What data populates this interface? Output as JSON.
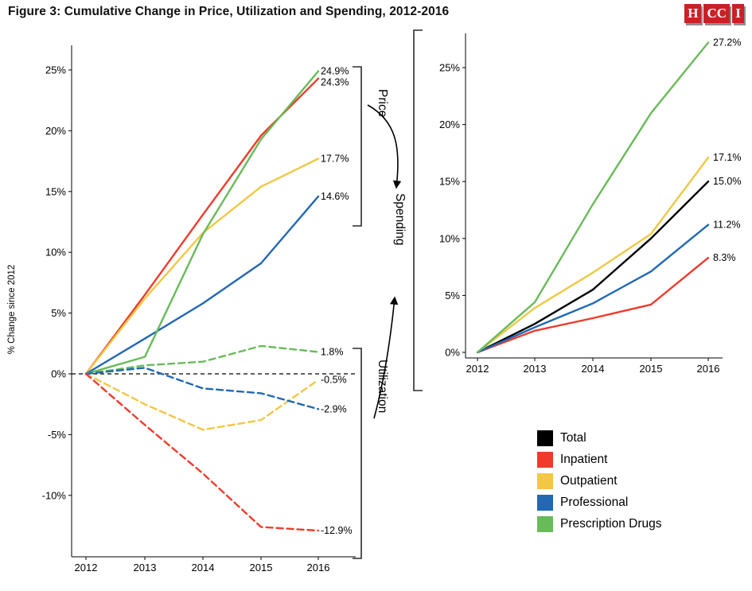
{
  "header": {
    "title": "Figure 3: Cumulative Change in Price, Utilization and Spending, 2012-2016",
    "logo": {
      "blocks": [
        "H",
        "CC",
        "I"
      ],
      "color": "#cb2026"
    }
  },
  "annotations": {
    "price": "Price",
    "utilization": "Utilization",
    "spending": "Spending"
  },
  "legend": {
    "items": [
      {
        "label": "Total",
        "color": "#000000"
      },
      {
        "label": "Inpatient",
        "color": "#ee3b2c"
      },
      {
        "label": "Outpatient",
        "color": "#f2c744"
      },
      {
        "label": "Professional",
        "color": "#2268b3"
      },
      {
        "label": "Prescription Drugs",
        "color": "#68bb59"
      }
    ]
  },
  "chart_data": [
    {
      "type": "line",
      "title": "Price and Utilization",
      "x": [
        "2012",
        "2013",
        "2014",
        "2015",
        "2016"
      ],
      "ylabel": "% Change since 2012",
      "yticks": [
        "25%",
        "20%",
        "15%",
        "10%",
        "5%",
        "0%",
        "-5%",
        "-10%"
      ],
      "ylim": [
        -15,
        27
      ],
      "zero_line": true,
      "grid": false,
      "series": [
        {
          "name": "Inpatient Price",
          "group": "Price",
          "color": "#ee3b2c",
          "style": "solid",
          "values": [
            0,
            6.5,
            13.1,
            19.6,
            24.3
          ],
          "end_label": "24.3%"
        },
        {
          "name": "Outpatient Price",
          "group": "Price",
          "color": "#f2c744",
          "style": "solid",
          "values": [
            0,
            6.2,
            11.6,
            15.4,
            17.7
          ],
          "end_label": "17.7%"
        },
        {
          "name": "Professional Price",
          "group": "Price",
          "color": "#2268b3",
          "style": "solid",
          "values": [
            0,
            2.9,
            5.8,
            9.1,
            14.6
          ],
          "end_label": "14.6%"
        },
        {
          "name": "Prescription Drugs Price",
          "group": "Price",
          "color": "#68bb59",
          "style": "solid",
          "values": [
            0,
            1.4,
            11.5,
            19.3,
            24.9
          ],
          "end_label": "24.9%"
        },
        {
          "name": "Prescription Drugs Utilization",
          "group": "Utilization",
          "color": "#68bb59",
          "style": "dashed",
          "values": [
            0,
            0.7,
            1.0,
            2.3,
            1.8
          ],
          "end_label": "1.8%"
        },
        {
          "name": "Outpatient Utilization",
          "group": "Utilization",
          "color": "#f2c744",
          "style": "dashed",
          "values": [
            0,
            -2.5,
            -4.6,
            -3.8,
            -0.5
          ],
          "end_label": "-0.5%"
        },
        {
          "name": "Professional Utilization",
          "group": "Utilization",
          "color": "#2268b3",
          "style": "dashed",
          "values": [
            0,
            0.5,
            -1.2,
            -1.6,
            -2.9
          ],
          "end_label": "-2.9%"
        },
        {
          "name": "Inpatient Utilization",
          "group": "Utilization",
          "color": "#ee3b2c",
          "style": "dashed",
          "values": [
            0,
            -4.2,
            -8.2,
            -12.6,
            -12.9
          ],
          "end_label": "-12.9%"
        }
      ]
    },
    {
      "type": "line",
      "title": "Spending",
      "x": [
        "2012",
        "2013",
        "2014",
        "2015",
        "2016"
      ],
      "ylabel": "",
      "yticks": [
        "25%",
        "20%",
        "15%",
        "10%",
        "5%",
        "0%"
      ],
      "ylim": [
        -1,
        28
      ],
      "zero_line": false,
      "grid": false,
      "series": [
        {
          "name": "Total",
          "group": "Spending",
          "color": "#000000",
          "style": "solid",
          "values": [
            0,
            2.5,
            5.5,
            10.0,
            15.0
          ],
          "end_label": "15.0%"
        },
        {
          "name": "Inpatient",
          "group": "Spending",
          "color": "#ee3b2c",
          "style": "solid",
          "values": [
            0,
            1.9,
            3.0,
            4.2,
            8.3
          ],
          "end_label": "8.3%"
        },
        {
          "name": "Outpatient",
          "group": "Spending",
          "color": "#f2c744",
          "style": "solid",
          "values": [
            0,
            3.9,
            7.0,
            10.4,
            17.1
          ],
          "end_label": "17.1%"
        },
        {
          "name": "Professional",
          "group": "Spending",
          "color": "#2268b3",
          "style": "solid",
          "values": [
            0,
            2.2,
            4.3,
            7.1,
            11.2
          ],
          "end_label": "11.2%"
        },
        {
          "name": "Prescription Drugs",
          "group": "Spending",
          "color": "#68bb59",
          "style": "solid",
          "values": [
            0,
            4.4,
            13.0,
            21.0,
            27.2
          ],
          "end_label": "27.2%"
        }
      ]
    }
  ]
}
